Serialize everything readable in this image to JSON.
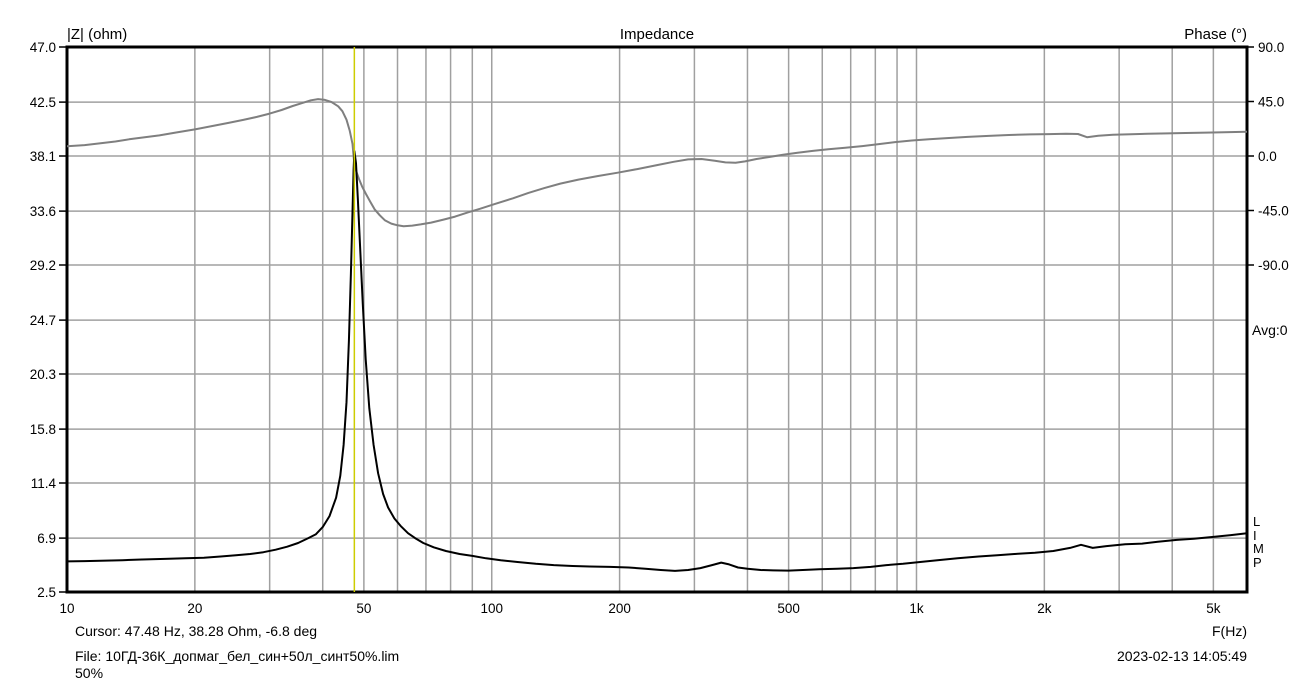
{
  "title": "Impedance",
  "axes": {
    "left_label": "|Z| (ohm)",
    "right_label": "Phase (°)",
    "x_label": "F(Hz)",
    "left_ticks": [
      "47.0",
      "42.5",
      "38.1",
      "33.6",
      "29.2",
      "24.7",
      "20.3",
      "15.8",
      "11.4",
      "6.9",
      "2.5"
    ],
    "right_ticks": [
      "90.0",
      "45.0",
      "0.0",
      "-45.0",
      "-90.0"
    ],
    "x_ticks": [
      {
        "label": "10",
        "f": 10
      },
      {
        "label": "20",
        "f": 20
      },
      {
        "label": "50",
        "f": 50
      },
      {
        "label": "100",
        "f": 100
      },
      {
        "label": "200",
        "f": 200
      },
      {
        "label": "500",
        "f": 500
      },
      {
        "label": "1k",
        "f": 1000
      },
      {
        "label": "2k",
        "f": 2000
      },
      {
        "label": "5k",
        "f": 5000
      }
    ]
  },
  "status": {
    "cursor_text": "Cursor: 47.48 Hz, 38.28 Ohm, -6.8 deg",
    "file_text": "File: 10ГД-36К_допмаг_бел_син+50л_синт50%.lim",
    "progress": "50%",
    "datetime": "2023-02-13 14:05:49",
    "avg": "Avg:0"
  },
  "branding": {
    "letters": [
      "L",
      "I",
      "M",
      "P"
    ]
  },
  "colors": {
    "impedance_curve": "#000000",
    "phase_curve": "#7f7f7f",
    "grid": "#a0a0a0",
    "frame": "#000000",
    "cursor_line": "#cdcd00",
    "background": "#ffffff",
    "text": "#000000"
  },
  "chart_data": {
    "type": "line",
    "title": "Impedance",
    "xlabel": "F(Hz)",
    "x_scale": "log",
    "x_range": [
      10,
      6000
    ],
    "y_left": {
      "label": "|Z| (ohm)",
      "range": [
        2.5,
        47.0
      ],
      "ticks": [
        47.0,
        42.5,
        38.1,
        33.6,
        29.2,
        24.7,
        20.3,
        15.8,
        11.4,
        6.9,
        2.5
      ]
    },
    "y_right": {
      "label": "Phase (°)",
      "ticks": [
        90.0,
        45.0,
        0.0,
        -45.0,
        -90.0
      ],
      "note": "phase 90..-90 maps to top five left-axis tick intervals (90°=47.0 ohm line, 0°=38.1 ohm line, -90°=29.2 ohm line)"
    },
    "grid": true,
    "grid_freqs": [
      20,
      30,
      40,
      50,
      60,
      70,
      80,
      90,
      100,
      200,
      300,
      400,
      500,
      600,
      700,
      800,
      900,
      1000,
      2000,
      3000,
      4000,
      5000
    ],
    "grid_z": [
      42.5,
      38.1,
      33.6,
      29.2,
      24.7,
      20.3,
      15.8,
      11.4,
      6.9
    ],
    "cursor": {
      "freq_hz": 47.48,
      "impedance_ohm": 38.28,
      "phase_deg": -6.8
    },
    "series": [
      {
        "name": "Impedance (ohm)",
        "axis": "left",
        "points": [
          [
            10,
            5.0
          ],
          [
            11,
            5.02
          ],
          [
            12,
            5.05
          ],
          [
            13.5,
            5.1
          ],
          [
            15,
            5.15
          ],
          [
            17,
            5.2
          ],
          [
            19,
            5.25
          ],
          [
            21,
            5.3
          ],
          [
            23,
            5.4
          ],
          [
            25,
            5.5
          ],
          [
            27,
            5.6
          ],
          [
            29,
            5.75
          ],
          [
            31,
            5.95
          ],
          [
            33,
            6.2
          ],
          [
            35,
            6.5
          ],
          [
            37,
            6.9
          ],
          [
            38.5,
            7.2
          ],
          [
            40,
            7.8
          ],
          [
            41.5,
            8.7
          ],
          [
            43,
            10.2
          ],
          [
            44,
            12
          ],
          [
            44.8,
            14.5
          ],
          [
            45.5,
            18
          ],
          [
            46.1,
            23
          ],
          [
            46.6,
            28.5
          ],
          [
            47,
            33.5
          ],
          [
            47.3,
            37
          ],
          [
            47.5,
            38.5
          ],
          [
            47.9,
            37.5
          ],
          [
            48.4,
            34.5
          ],
          [
            49,
            30.5
          ],
          [
            49.7,
            26
          ],
          [
            50.5,
            21.5
          ],
          [
            51.5,
            17.5
          ],
          [
            52.7,
            14.5
          ],
          [
            54,
            12.2
          ],
          [
            55.5,
            10.5
          ],
          [
            57,
            9.4
          ],
          [
            59,
            8.5
          ],
          [
            61,
            7.9
          ],
          [
            63.5,
            7.3
          ],
          [
            66,
            6.9
          ],
          [
            69,
            6.5
          ],
          [
            73,
            6.15
          ],
          [
            78,
            5.85
          ],
          [
            84,
            5.6
          ],
          [
            90,
            5.45
          ],
          [
            97,
            5.25
          ],
          [
            105,
            5.1
          ],
          [
            115,
            4.95
          ],
          [
            127,
            4.8
          ],
          [
            140,
            4.7
          ],
          [
            155,
            4.62
          ],
          [
            170,
            4.58
          ],
          [
            190,
            4.55
          ],
          [
            210,
            4.5
          ],
          [
            230,
            4.4
          ],
          [
            250,
            4.3
          ],
          [
            270,
            4.22
          ],
          [
            290,
            4.3
          ],
          [
            310,
            4.45
          ],
          [
            330,
            4.7
          ],
          [
            347,
            4.9
          ],
          [
            362,
            4.75
          ],
          [
            380,
            4.5
          ],
          [
            400,
            4.4
          ],
          [
            430,
            4.3
          ],
          [
            460,
            4.26
          ],
          [
            500,
            4.25
          ],
          [
            540,
            4.3
          ],
          [
            590,
            4.35
          ],
          [
            650,
            4.4
          ],
          [
            710,
            4.45
          ],
          [
            780,
            4.55
          ],
          [
            850,
            4.7
          ],
          [
            930,
            4.8
          ],
          [
            1020,
            4.95
          ],
          [
            1120,
            5.1
          ],
          [
            1250,
            5.25
          ],
          [
            1400,
            5.4
          ],
          [
            1550,
            5.5
          ],
          [
            1700,
            5.6
          ],
          [
            1900,
            5.7
          ],
          [
            2100,
            5.85
          ],
          [
            2300,
            6.1
          ],
          [
            2440,
            6.35
          ],
          [
            2600,
            6.1
          ],
          [
            2800,
            6.25
          ],
          [
            3100,
            6.4
          ],
          [
            3400,
            6.45
          ],
          [
            3700,
            6.6
          ],
          [
            4100,
            6.75
          ],
          [
            4500,
            6.85
          ],
          [
            5000,
            7.0
          ],
          [
            5500,
            7.15
          ],
          [
            6000,
            7.3
          ]
        ]
      },
      {
        "name": "Phase (deg)",
        "axis": "right",
        "points": [
          [
            10,
            8
          ],
          [
            11,
            9
          ],
          [
            12,
            10.5
          ],
          [
            13,
            12
          ],
          [
            14,
            13.8
          ],
          [
            15,
            15.2
          ],
          [
            16.5,
            17
          ],
          [
            18,
            19.3
          ],
          [
            20,
            22
          ],
          [
            22,
            24.8
          ],
          [
            24,
            27.3
          ],
          [
            26,
            29.8
          ],
          [
            28,
            32.3
          ],
          [
            30,
            35
          ],
          [
            32,
            38
          ],
          [
            34,
            41.3
          ],
          [
            36,
            44
          ],
          [
            37.5,
            46
          ],
          [
            39,
            47
          ],
          [
            40.5,
            46.3
          ],
          [
            42,
            44.5
          ],
          [
            43.5,
            41
          ],
          [
            44.5,
            37
          ],
          [
            45.5,
            30
          ],
          [
            46.3,
            21
          ],
          [
            47,
            10
          ],
          [
            47.48,
            -6.8
          ],
          [
            48,
            -13
          ],
          [
            48.7,
            -19
          ],
          [
            49.5,
            -25
          ],
          [
            50.5,
            -31
          ],
          [
            51.8,
            -38
          ],
          [
            53,
            -44
          ],
          [
            54.5,
            -49
          ],
          [
            56,
            -53
          ],
          [
            58,
            -55.8
          ],
          [
            60,
            -57.2
          ],
          [
            62,
            -58
          ],
          [
            65,
            -57.5
          ],
          [
            68,
            -56.5
          ],
          [
            72,
            -55
          ],
          [
            77,
            -52.5
          ],
          [
            82,
            -50
          ],
          [
            88,
            -46.5
          ],
          [
            94,
            -43.5
          ],
          [
            102,
            -39.5
          ],
          [
            112,
            -35
          ],
          [
            122,
            -30.5
          ],
          [
            133,
            -26.5
          ],
          [
            145,
            -22.8
          ],
          [
            160,
            -19.5
          ],
          [
            178,
            -16.5
          ],
          [
            198,
            -13.8
          ],
          [
            220,
            -10.8
          ],
          [
            245,
            -7.5
          ],
          [
            268,
            -4.8
          ],
          [
            290,
            -2.8
          ],
          [
            312,
            -2.5
          ],
          [
            335,
            -4
          ],
          [
            355,
            -5.3
          ],
          [
            375,
            -5.5
          ],
          [
            395,
            -4.5
          ],
          [
            420,
            -2.5
          ],
          [
            450,
            -0.8
          ],
          [
            485,
            1
          ],
          [
            525,
            2.7
          ],
          [
            570,
            4.2
          ],
          [
            620,
            5.5
          ],
          [
            680,
            6.8
          ],
          [
            745,
            8.2
          ],
          [
            815,
            9.8
          ],
          [
            890,
            11.5
          ],
          [
            975,
            12.8
          ],
          [
            1070,
            13.8
          ],
          [
            1180,
            14.8
          ],
          [
            1320,
            15.8
          ],
          [
            1480,
            16.6
          ],
          [
            1650,
            17.3
          ],
          [
            1850,
            17.8
          ],
          [
            2050,
            18.1
          ],
          [
            2250,
            18.3
          ],
          [
            2400,
            18.2
          ],
          [
            2520,
            15.5
          ],
          [
            2680,
            16.8
          ],
          [
            2900,
            17.5
          ],
          [
            3200,
            18
          ],
          [
            3500,
            18.3
          ],
          [
            3900,
            18.7
          ],
          [
            4300,
            19
          ],
          [
            4800,
            19.3
          ],
          [
            5300,
            19.6
          ],
          [
            6000,
            20
          ]
        ]
      }
    ]
  }
}
